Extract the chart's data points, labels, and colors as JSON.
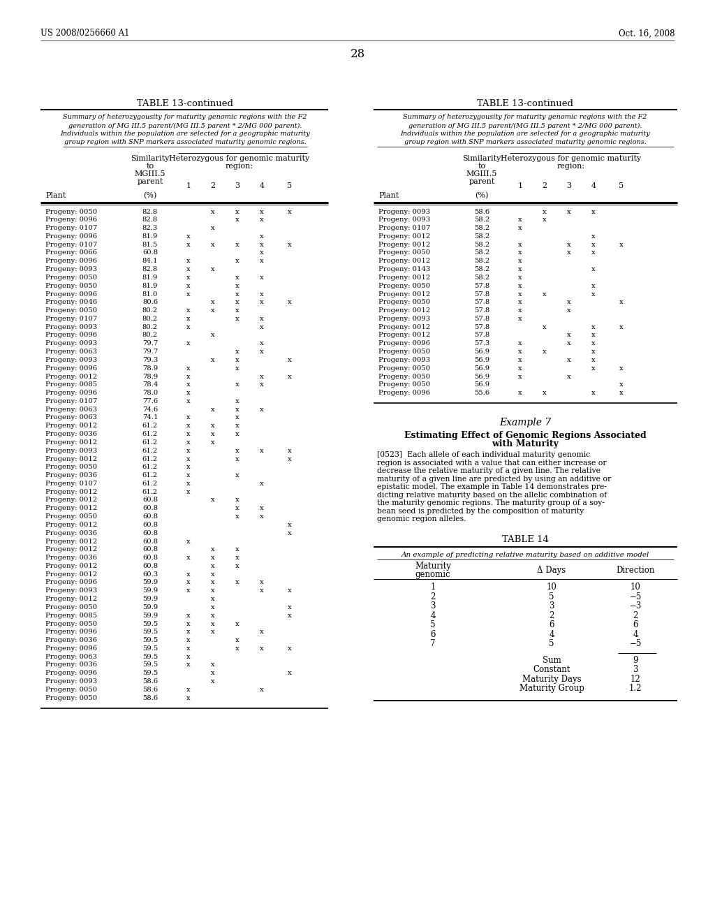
{
  "header_left": "US 2008/0256660 A1",
  "header_right": "Oct. 16, 2008",
  "page_number": "28",
  "table_title": "TABLE 13-continued",
  "table_caption_lines": [
    "Summary of heterozygousity for maturity genomic regions with the F2",
    "generation of MG III.5 parent/(MG III.5 parent * 2/MG 000 parent).",
    "Individuals within the population are selected for a geographic maturity",
    "group region with SNP markers associated maturity genomic regions."
  ],
  "left_table_data": [
    [
      "Progeny: 0050",
      "82.8",
      "",
      "x",
      "x",
      "x",
      "x"
    ],
    [
      "Progeny: 0096",
      "82.8",
      "",
      "",
      "x",
      "x",
      ""
    ],
    [
      "Progeny: 0107",
      "82.3",
      "",
      "x",
      "",
      "",
      ""
    ],
    [
      "Progeny: 0096",
      "81.9",
      "x",
      "",
      "",
      "x",
      ""
    ],
    [
      "Progeny: 0107",
      "81.5",
      "x",
      "x",
      "x",
      "x",
      "x"
    ],
    [
      "Progeny: 0066",
      "60.8",
      "",
      "",
      "",
      "x",
      ""
    ],
    [
      "Progeny: 0096",
      "84.1",
      "x",
      "",
      "x",
      "x",
      ""
    ],
    [
      "Progeny: 0093",
      "82.8",
      "x",
      "x",
      "",
      "",
      ""
    ],
    [
      "Progeny: 0050",
      "81.9",
      "x",
      "",
      "x",
      "x",
      ""
    ],
    [
      "Progeny: 0050",
      "81.9",
      "x",
      "",
      "x",
      "",
      ""
    ],
    [
      "Progeny: 0096",
      "81.0",
      "x",
      "",
      "x",
      "x",
      ""
    ],
    [
      "Progeny: 0046",
      "80.6",
      "",
      "x",
      "x",
      "x",
      "x"
    ],
    [
      "Progeny: 0050",
      "80.2",
      "x",
      "x",
      "x",
      "",
      ""
    ],
    [
      "Progeny: 0107",
      "80.2",
      "x",
      "",
      "x",
      "x",
      ""
    ],
    [
      "Progeny: 0093",
      "80.2",
      "x",
      "",
      "",
      "x",
      ""
    ],
    [
      "Progeny: 0096",
      "80.2",
      "",
      "x",
      "",
      "",
      ""
    ],
    [
      "Progeny: 0093",
      "79.7",
      "x",
      "",
      "",
      "x",
      ""
    ],
    [
      "Progeny: 0063",
      "79.7",
      "",
      "",
      "x",
      "x",
      ""
    ],
    [
      "Progeny: 0093",
      "79.3",
      "",
      "x",
      "x",
      "",
      "x"
    ],
    [
      "Progeny: 0096",
      "78.9",
      "x",
      "",
      "x",
      "",
      ""
    ],
    [
      "Progeny: 0012",
      "78.9",
      "x",
      "",
      "",
      "x",
      "x"
    ],
    [
      "Progeny: 0085",
      "78.4",
      "x",
      "",
      "x",
      "x",
      ""
    ],
    [
      "Progeny: 0096",
      "78.0",
      "x",
      "",
      "",
      "",
      ""
    ],
    [
      "Progeny: 0107",
      "77.6",
      "x",
      "",
      "x",
      "",
      ""
    ],
    [
      "Progeny: 0063",
      "74.6",
      "",
      "x",
      "x",
      "x",
      ""
    ],
    [
      "Progeny: 0063",
      "74.1",
      "x",
      "",
      "x",
      "",
      ""
    ],
    [
      "Progeny: 0012",
      "61.2",
      "x",
      "x",
      "x",
      "",
      ""
    ],
    [
      "Progeny: 0036",
      "61.2",
      "x",
      "x",
      "x",
      "",
      ""
    ],
    [
      "Progeny: 0012",
      "61.2",
      "x",
      "x",
      "",
      "",
      ""
    ],
    [
      "Progeny: 0093",
      "61.2",
      "x",
      "",
      "x",
      "x",
      "x"
    ],
    [
      "Progeny: 0012",
      "61.2",
      "x",
      "",
      "x",
      "",
      "x"
    ],
    [
      "Progeny: 0050",
      "61.2",
      "x",
      "",
      "",
      "",
      ""
    ],
    [
      "Progeny: 0036",
      "61.2",
      "x",
      "",
      "x",
      "",
      ""
    ],
    [
      "Progeny: 0107",
      "61.2",
      "x",
      "",
      "",
      "x",
      ""
    ],
    [
      "Progeny: 0012",
      "61.2",
      "x",
      "",
      "",
      "",
      ""
    ],
    [
      "Progeny: 0012",
      "60.8",
      "",
      "x",
      "x",
      "",
      ""
    ],
    [
      "Progeny: 0012",
      "60.8",
      "",
      "",
      "x",
      "x",
      ""
    ],
    [
      "Progeny: 0050",
      "60.8",
      "",
      "",
      "x",
      "x",
      ""
    ],
    [
      "Progeny: 0012",
      "60.8",
      "",
      "",
      "",
      "",
      "x"
    ],
    [
      "Progeny: 0036",
      "60.8",
      "",
      "",
      "",
      "",
      "x"
    ],
    [
      "Progeny: 0012",
      "60.8",
      "x",
      "",
      "",
      "",
      ""
    ],
    [
      "Progeny: 0012",
      "60.8",
      "",
      "x",
      "x",
      "",
      ""
    ],
    [
      "Progeny: 0036",
      "60.8",
      "x",
      "x",
      "x",
      "",
      ""
    ],
    [
      "Progeny: 0012",
      "60.8",
      "",
      "x",
      "x",
      "",
      ""
    ],
    [
      "Progeny: 0012",
      "60.3",
      "x",
      "x",
      "",
      "",
      ""
    ],
    [
      "Progeny: 0096",
      "59.9",
      "x",
      "x",
      "x",
      "x",
      ""
    ],
    [
      "Progeny: 0093",
      "59.9",
      "x",
      "x",
      "",
      "x",
      "x"
    ],
    [
      "Progeny: 0012",
      "59.9",
      "",
      "x",
      "",
      "",
      ""
    ],
    [
      "Progeny: 0050",
      "59.9",
      "",
      "x",
      "",
      "",
      "x"
    ],
    [
      "Progeny: 0085",
      "59.9",
      "x",
      "x",
      "",
      "",
      "x"
    ],
    [
      "Progeny: 0050",
      "59.5",
      "x",
      "x",
      "x",
      "",
      ""
    ],
    [
      "Progeny: 0096",
      "59.5",
      "x",
      "x",
      "",
      "x",
      ""
    ],
    [
      "Progeny: 0036",
      "59.5",
      "x",
      "",
      "x",
      "",
      ""
    ],
    [
      "Progeny: 0096",
      "59.5",
      "x",
      "",
      "x",
      "x",
      "x"
    ],
    [
      "Progeny: 0063",
      "59.5",
      "x",
      "",
      "",
      "",
      ""
    ],
    [
      "Progeny: 0036",
      "59.5",
      "x",
      "x",
      "",
      "",
      ""
    ],
    [
      "Progeny: 0096",
      "59.5",
      "",
      "x",
      "",
      "",
      "x"
    ],
    [
      "Progeny: 0093",
      "58.6",
      "",
      "x",
      "",
      "",
      ""
    ],
    [
      "Progeny: 0050",
      "58.6",
      "x",
      "",
      "",
      "x",
      ""
    ],
    [
      "Progeny: 0050",
      "58.6",
      "x",
      "",
      "",
      "",
      ""
    ]
  ],
  "right_table_data": [
    [
      "Progeny: 0093",
      "58.6",
      "",
      "x",
      "x",
      "x",
      ""
    ],
    [
      "Progeny: 0093",
      "58.2",
      "x",
      "x",
      "",
      "",
      ""
    ],
    [
      "Progeny: 0107",
      "58.2",
      "x",
      "",
      "",
      "",
      ""
    ],
    [
      "Progeny: 0012",
      "58.2",
      "",
      "",
      "",
      "x",
      ""
    ],
    [
      "Progeny: 0012",
      "58.2",
      "x",
      "",
      "x",
      "x",
      "x"
    ],
    [
      "Progeny: 0050",
      "58.2",
      "x",
      "",
      "x",
      "x",
      ""
    ],
    [
      "Progeny: 0012",
      "58.2",
      "x",
      "",
      "",
      "",
      ""
    ],
    [
      "Progeny: 0143",
      "58.2",
      "x",
      "",
      "",
      "x",
      ""
    ],
    [
      "Progeny: 0012",
      "58.2",
      "x",
      "",
      "",
      "",
      ""
    ],
    [
      "Progeny: 0050",
      "57.8",
      "x",
      "",
      "",
      "x",
      ""
    ],
    [
      "Progeny: 0012",
      "57.8",
      "x",
      "x",
      "",
      "x",
      ""
    ],
    [
      "Progeny: 0050",
      "57.8",
      "x",
      "",
      "x",
      "",
      "x"
    ],
    [
      "Progeny: 0012",
      "57.8",
      "x",
      "",
      "x",
      "",
      ""
    ],
    [
      "Progeny: 0093",
      "57.8",
      "x",
      "",
      "",
      "",
      ""
    ],
    [
      "Progeny: 0012",
      "57.8",
      "",
      "x",
      "",
      "x",
      "x"
    ],
    [
      "Progeny: 0012",
      "57.8",
      "",
      "",
      "x",
      "x",
      ""
    ],
    [
      "Progeny: 0096",
      "57.3",
      "x",
      "",
      "x",
      "x",
      ""
    ],
    [
      "Progeny: 0050",
      "56.9",
      "x",
      "x",
      "",
      "x",
      ""
    ],
    [
      "Progeny: 0093",
      "56.9",
      "x",
      "",
      "x",
      "x",
      ""
    ],
    [
      "Progeny: 0050",
      "56.9",
      "x",
      "",
      "",
      "x",
      "x"
    ],
    [
      "Progeny: 0050",
      "56.9",
      "x",
      "",
      "x",
      "",
      ""
    ],
    [
      "Progeny: 0050",
      "56.9",
      "",
      "",
      "",
      "",
      "x"
    ],
    [
      "Progeny: 0096",
      "55.6",
      "x",
      "x",
      "",
      "x",
      "x"
    ]
  ],
  "example7_title": "Example 7",
  "example7_subtitle1": "Estimating Effect of Genomic Regions Associated",
  "example7_subtitle2": "with Maturity",
  "example7_text_lines": [
    "[0523]  Each allele of each individual maturity genomic",
    "region is associated with a value that can either increase or",
    "decrease the relative maturity of a given line. The relative",
    "maturity of a given line are predicted by using an additive or",
    "epistatic model. The example in Table 14 demonstrates pre-",
    "dicting relative maturity based on the allelic combination of",
    "the maturity genomic regions. The maturity group of a soy-",
    "bean seed is predicted by the composition of maturity",
    "genomic region alleles."
  ],
  "table14_title": "TABLE 14",
  "table14_caption": "An example of predicting relative maturity based on additive model",
  "table14_col_headers": [
    "Maturity\ngenomic",
    "Δ Days",
    "Direction"
  ],
  "table14_data": [
    [
      "1",
      "10",
      "10"
    ],
    [
      "2",
      "5",
      "−5"
    ],
    [
      "3",
      "3",
      "−3"
    ],
    [
      "4",
      "2",
      "2"
    ],
    [
      "5",
      "6",
      "6"
    ],
    [
      "6",
      "4",
      "4"
    ],
    [
      "7",
      "5",
      "−5"
    ]
  ],
  "table14_sum_rows": [
    [
      "Sum",
      "9"
    ],
    [
      "Constant",
      "3"
    ],
    [
      "Maturity Days",
      "12"
    ],
    [
      "Maturity Group",
      "1.2"
    ]
  ]
}
